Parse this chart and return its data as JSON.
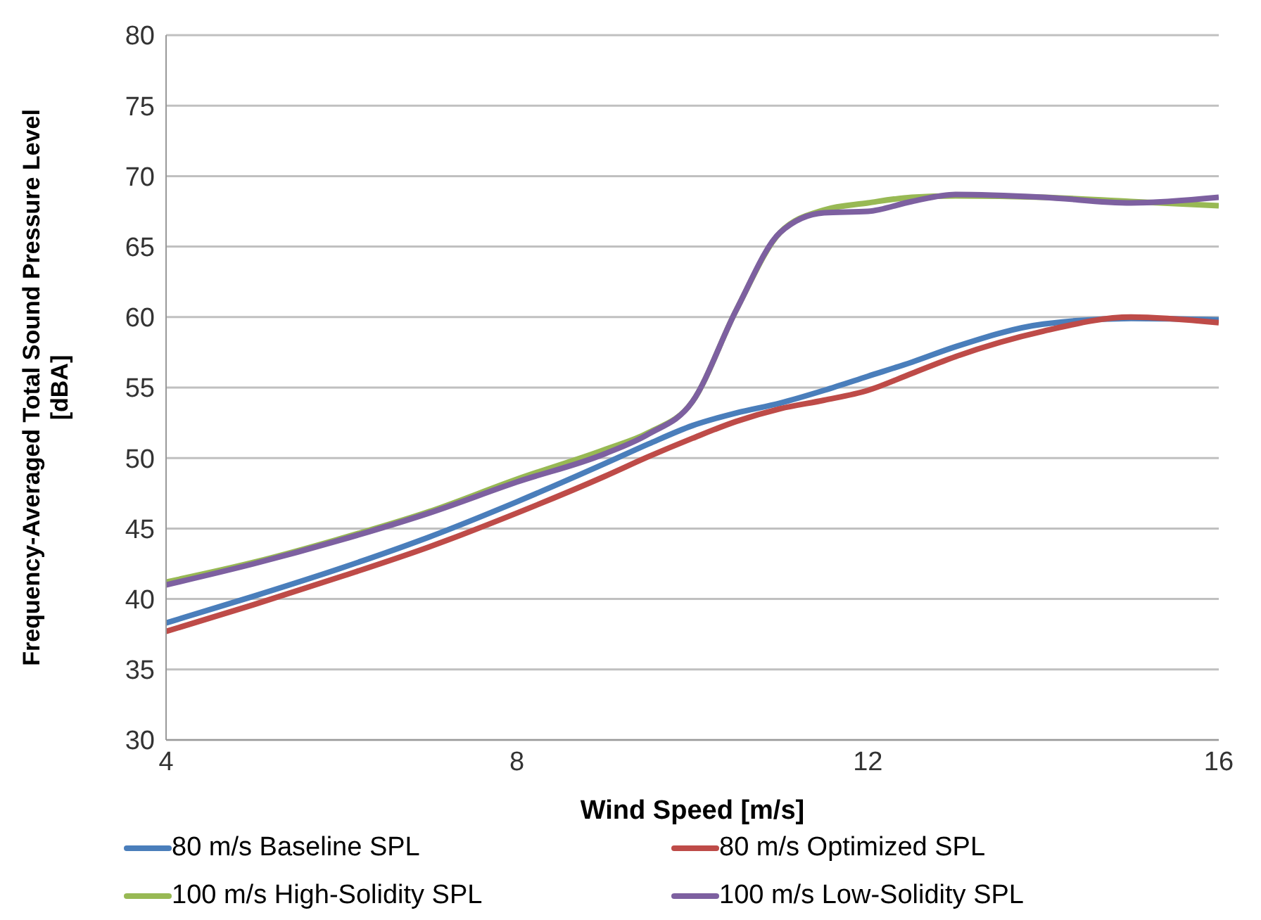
{
  "chart_data": {
    "type": "line",
    "xlabel": "Wind Speed [m/s]",
    "ylabel": "Frequency-Averaged Total Sound Pressure Level [dBA]",
    "x": [
      4,
      5,
      6,
      7,
      8,
      9,
      9.5,
      10,
      10.5,
      11,
      11.5,
      12,
      12.5,
      13,
      14,
      15,
      16
    ],
    "series": [
      {
        "name": "80 m/s Baseline SPL",
        "color": "#4a7ebb",
        "values": [
          38.3,
          40.2,
          42.2,
          44.4,
          46.9,
          49.6,
          51,
          52.3,
          53.2,
          53.9,
          54.8,
          55.8,
          56.8,
          57.9,
          59.5,
          59.9,
          59.8
        ]
      },
      {
        "name": "80 m/s Optimized SPL",
        "color": "#be4b48",
        "values": [
          37.7,
          39.6,
          41.6,
          43.7,
          46.1,
          48.7,
          50.1,
          51.4,
          52.6,
          53.5,
          54.1,
          54.8,
          56,
          57.2,
          59,
          60,
          59.6
        ]
      },
      {
        "name": "100 m/s High-Solidity SPL",
        "color": "#98b954",
        "values": [
          41.2,
          42.6,
          44.3,
          46.2,
          48.5,
          50.6,
          51.8,
          54,
          60.5,
          66,
          67.6,
          68.1,
          68.5,
          68.6,
          68.5,
          68.2,
          67.9
        ]
      },
      {
        "name": "100 m/s Low-Solidity SPL",
        "color": "#7d60a0",
        "values": [
          41,
          42.5,
          44.2,
          46.1,
          48.3,
          50.3,
          51.7,
          54,
          60.5,
          66,
          67.4,
          67.5,
          68.2,
          68.7,
          68.5,
          68.1,
          68.5
        ]
      }
    ],
    "xlim": [
      4,
      16
    ],
    "xticks": [
      4,
      8,
      12,
      16
    ],
    "ylim": [
      30,
      80
    ],
    "yticks": [
      30,
      35,
      40,
      45,
      50,
      55,
      60,
      65,
      70,
      75,
      80
    ],
    "grid": "y",
    "legend": "bottom",
    "marker": "none",
    "line_style": "solid"
  }
}
